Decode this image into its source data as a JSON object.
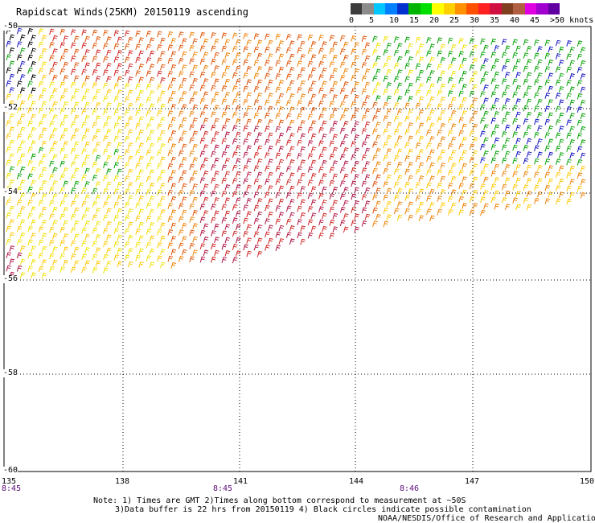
{
  "title": "Rapidscat Winds(25KM) 20150119 ascending",
  "colorbar": {
    "labels": [
      "0",
      "5",
      "10",
      "15",
      "20",
      "25",
      "30",
      "35",
      "40",
      "45",
      ">50 knots"
    ],
    "colors": [
      "#3c3c3c",
      "#8c8c8c",
      "#00c8ff",
      "#0080ff",
      "#0030d0",
      "#00b400",
      "#00e000",
      "#ffff00",
      "#ffd000",
      "#ff9000",
      "#ff5000",
      "#ff2020",
      "#d01040",
      "#804020",
      "#b06040",
      "#e000e0",
      "#a000d0",
      "#6000a0"
    ]
  },
  "map": {
    "lat_labels": [
      "-50",
      "-52",
      "-54",
      "-56",
      "-58",
      "-60"
    ],
    "lon_labels": [
      "135",
      "138",
      "141",
      "144",
      "147",
      "150"
    ],
    "time_labels": [
      "8:45",
      "8:45",
      "8:46"
    ]
  },
  "notes": {
    "line1": "Note: 1) Times are GMT 2)Times along bottom correspond to measurement at ~50S",
    "line2": "3)Data buffer is 22 hrs from 20150119 4) Black circles indicate possible contamination",
    "line3": "NOAA/NESDIS/Office of Research and Applications"
  },
  "speed_colors": {
    "black": "#000000",
    "blue": "#1010c0",
    "green": "#00a000",
    "yellow": "#f0e000",
    "gold": "#ffc800",
    "orange": "#f08000",
    "darkorange": "#e05000",
    "red": "#d02020",
    "crimson": "#b01040"
  }
}
